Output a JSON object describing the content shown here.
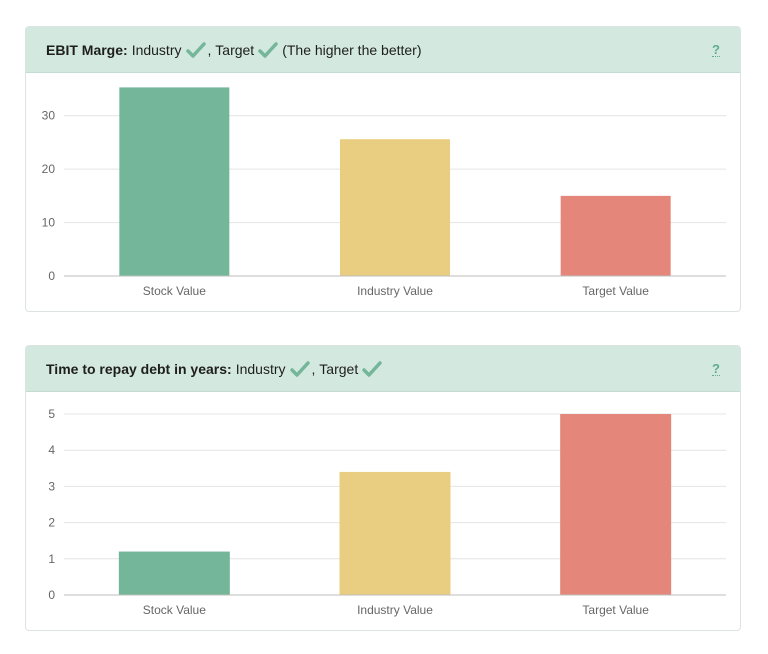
{
  "cards": [
    {
      "header": {
        "title": "EBIT Marge:",
        "industry_label": "Industry",
        "separator": ", ",
        "target_label": "Target",
        "note": "(The higher the better)",
        "help": "?"
      },
      "chart_data": {
        "type": "bar",
        "categories": [
          "Stock Value",
          "Industry Value",
          "Target Value"
        ],
        "values": [
          35.3,
          25.6,
          15
        ],
        "colors": [
          "#74b699",
          "#e9cd80",
          "#e5867b"
        ],
        "ylim": [
          0,
          35
        ],
        "yticks": [
          0,
          10,
          20,
          30
        ],
        "grid": true,
        "title": "",
        "xlabel": "",
        "ylabel": ""
      }
    },
    {
      "header": {
        "title": "Time to repay debt in years:",
        "industry_label": "Industry",
        "separator": ", ",
        "target_label": "Target",
        "note": "",
        "help": "?"
      },
      "chart_data": {
        "type": "bar",
        "categories": [
          "Stock Value",
          "Industry Value",
          "Target Value"
        ],
        "values": [
          1.2,
          3.4,
          5
        ],
        "colors": [
          "#74b699",
          "#e9cd80",
          "#e5867b"
        ],
        "ylim": [
          0,
          5
        ],
        "yticks": [
          0,
          1,
          2,
          3,
          4,
          5
        ],
        "grid": true,
        "title": "",
        "xlabel": "",
        "ylabel": ""
      }
    }
  ],
  "colors": {
    "check": "#74b699",
    "header_bg": "#d3e8df"
  },
  "icons": {
    "check": "check-icon"
  }
}
